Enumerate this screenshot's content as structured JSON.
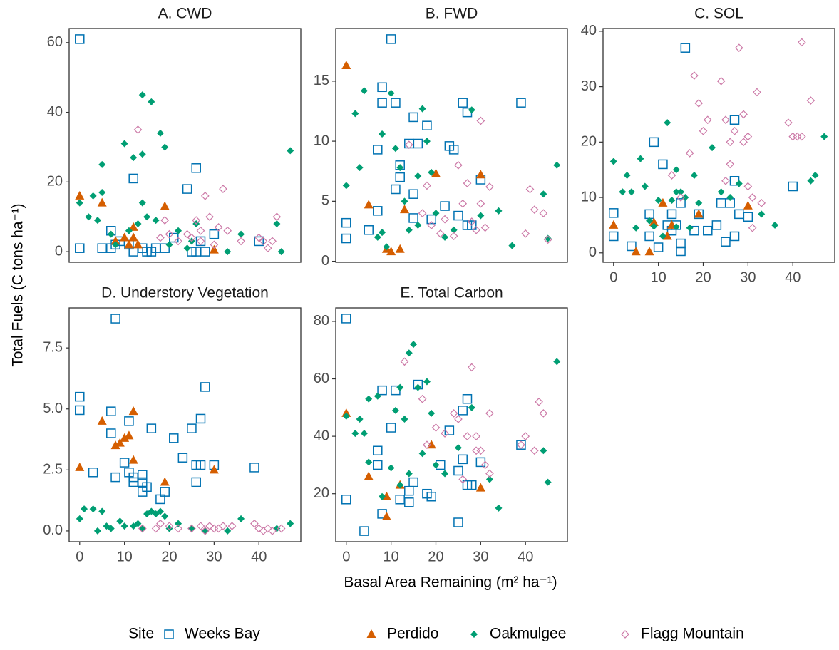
{
  "chart_data": [
    {
      "type": "scatter",
      "title": "A. CWD",
      "xlim": [
        -2.35,
        49.35
      ],
      "ylim": [
        -3.05,
        64.05
      ],
      "yticks": [
        0,
        20,
        40,
        60
      ],
      "series": [
        {
          "name": "Weeks Bay",
          "color": "#0072B2",
          "marker": "square-open",
          "x": [
            0,
            0,
            5,
            7,
            7,
            8,
            9,
            11,
            12,
            12,
            14,
            15,
            16,
            17,
            19,
            21,
            24,
            25,
            26,
            26,
            27,
            28,
            30,
            40
          ],
          "values": [
            61,
            1,
            1,
            6,
            1,
            2,
            3,
            2,
            21,
            0,
            1,
            0,
            0,
            1,
            1,
            4,
            18,
            0,
            24,
            0,
            3,
            0,
            5,
            3
          ]
        },
        {
          "name": "Perdido",
          "color": "#D55E00",
          "marker": "triangle",
          "x": [
            0,
            5,
            8,
            10,
            11,
            12,
            12,
            13,
            19,
            30
          ],
          "values": [
            16,
            14,
            3,
            4,
            2,
            7,
            4,
            2,
            13,
            0.5
          ]
        },
        {
          "name": "Oakmulgee",
          "color": "#009E73",
          "marker": "diamond",
          "x": [
            0,
            2,
            3,
            4,
            5,
            5,
            7,
            8,
            10,
            11,
            12,
            13,
            14,
            14,
            14,
            15,
            16,
            17,
            18,
            19,
            20,
            22,
            24,
            25,
            26,
            33,
            36,
            44,
            45,
            47
          ],
          "values": [
            14,
            10,
            16,
            9,
            17,
            25,
            5,
            2,
            31,
            6,
            27,
            8,
            45,
            28,
            14,
            10,
            43,
            9,
            34,
            30,
            2,
            6,
            1,
            3,
            8,
            0,
            5,
            8,
            0,
            29
          ]
        },
        {
          "name": "Flagg Mountain",
          "color": "#CC79A7",
          "marker": "diamond-open",
          "x": [
            13,
            18,
            19,
            20,
            22,
            24,
            25,
            26,
            27,
            27,
            28,
            29,
            30,
            31,
            32,
            33,
            36,
            40,
            41,
            42,
            43,
            44
          ],
          "values": [
            35,
            4,
            9,
            5,
            3,
            5,
            4,
            9,
            6,
            3,
            16,
            10,
            2,
            7,
            18,
            6,
            3,
            4,
            3,
            1,
            3,
            10
          ]
        }
      ]
    },
    {
      "type": "scatter",
      "title": "B. FWD",
      "xlim": [
        -2.35,
        49.35
      ],
      "ylim": [
        -0.085,
        19.385
      ],
      "yticks": [
        0,
        5,
        10,
        15
      ],
      "series": [
        {
          "name": "Weeks Bay",
          "color": "#0072B2",
          "marker": "square-open",
          "x": [
            0,
            0,
            5,
            7,
            7,
            8,
            8,
            10,
            11,
            11,
            12,
            12,
            14,
            15,
            15,
            15,
            16,
            18,
            19,
            22,
            23,
            24,
            25,
            26,
            27,
            27,
            28,
            30,
            39
          ],
          "values": [
            3.2,
            1.9,
            2.6,
            4.2,
            9.3,
            13.2,
            14.5,
            18.5,
            13.2,
            6,
            7,
            8,
            9.8,
            12,
            5.6,
            3.6,
            9.8,
            11.3,
            3.5,
            4.6,
            9.6,
            9.3,
            3.8,
            13.2,
            12.4,
            3,
            3,
            6.8,
            13.2
          ]
        },
        {
          "name": "Perdido",
          "color": "#D55E00",
          "marker": "triangle",
          "x": [
            0,
            5,
            9,
            10,
            12,
            13,
            20,
            30
          ],
          "values": [
            16.3,
            4.7,
            1,
            0.8,
            1,
            4.3,
            7.3,
            7.2
          ]
        },
        {
          "name": "Oakmulgee",
          "color": "#009E73",
          "marker": "diamond",
          "x": [
            0,
            2,
            3,
            4,
            7,
            8,
            8,
            9,
            10,
            11,
            12,
            13,
            14,
            16,
            16,
            17,
            18,
            19,
            20,
            22,
            24,
            28,
            30,
            34,
            37,
            44,
            45,
            47
          ],
          "values": [
            6.3,
            12.3,
            7.8,
            14.2,
            2,
            2.4,
            10.6,
            1.2,
            14,
            9.4,
            7.8,
            5,
            2.6,
            3,
            7.1,
            12.7,
            10,
            7.4,
            4,
            2,
            2.6,
            12.6,
            3.8,
            4.2,
            1.3,
            5.6,
            1.9,
            8
          ]
        },
        {
          "name": "Flagg Mountain",
          "color": "#CC79A7",
          "marker": "diamond-open",
          "x": [
            14,
            17,
            18,
            19,
            21,
            22,
            24,
            25,
            26,
            27,
            28,
            29,
            30,
            30,
            31,
            32,
            40,
            41,
            42,
            44,
            45
          ],
          "values": [
            9.7,
            4,
            6.3,
            3,
            2.3,
            3.5,
            2.1,
            8,
            4.8,
            6.5,
            3.3,
            2.6,
            4.8,
            11.7,
            2.8,
            6.2,
            2.3,
            6,
            4.3,
            4,
            1.8
          ]
        }
      ]
    },
    {
      "type": "scatter",
      "title": "C. SOL",
      "xlim": [
        -2.35,
        49.35
      ],
      "xticks": [
        0,
        10,
        20,
        30,
        40
      ],
      "ylim": [
        -1.7,
        40.5
      ],
      "yticks": [
        0,
        10,
        20,
        30,
        40
      ],
      "series": [
        {
          "name": "Weeks Bay",
          "color": "#0072B2",
          "marker": "square-open",
          "x": [
            0,
            0,
            4,
            8,
            8,
            9,
            10,
            11,
            12,
            13,
            13,
            14,
            15,
            15,
            15,
            16,
            18,
            19,
            21,
            23,
            24,
            25,
            26,
            27,
            27,
            27,
            28,
            30,
            40
          ],
          "values": [
            7.2,
            3,
            1.2,
            7,
            3,
            20,
            1,
            16,
            5,
            7,
            4,
            5,
            0.3,
            1.7,
            9,
            37,
            4,
            7,
            4,
            5,
            9,
            2,
            9,
            13,
            24,
            3,
            7,
            6.5,
            12
          ]
        },
        {
          "name": "Perdido",
          "color": "#D55E00",
          "marker": "triangle",
          "x": [
            0,
            5,
            8,
            9,
            11,
            12,
            13,
            19,
            30
          ],
          "values": [
            5,
            0.2,
            0.2,
            5.5,
            9,
            3,
            5,
            7,
            8.5
          ]
        },
        {
          "name": "Oakmulgee",
          "color": "#009E73",
          "marker": "diamond",
          "x": [
            0,
            2,
            3,
            4,
            5,
            6,
            7,
            8,
            9,
            10,
            11,
            12,
            13,
            14,
            14,
            14,
            15,
            16,
            17,
            18,
            19,
            22,
            24,
            26,
            28,
            33,
            36,
            44,
            45,
            47
          ],
          "values": [
            16.5,
            11,
            14,
            11,
            4.5,
            17,
            12,
            5.8,
            4.8,
            9.5,
            3,
            23.5,
            9.5,
            4.7,
            11,
            15,
            11,
            10,
            4.5,
            14,
            9,
            19,
            11,
            10,
            12.5,
            7,
            5,
            13,
            14,
            21
          ]
        },
        {
          "name": "Flagg Mountain",
          "color": "#CC79A7",
          "marker": "diamond-open",
          "x": [
            13,
            15,
            17,
            18,
            19,
            20,
            21,
            24,
            25,
            25,
            26,
            26,
            27,
            28,
            29,
            29,
            30,
            30,
            31,
            31,
            32,
            33,
            39,
            40,
            41,
            42,
            42,
            44
          ],
          "values": [
            14,
            10,
            18,
            32,
            27,
            22,
            24,
            31,
            24,
            13,
            20,
            16,
            22,
            37,
            20,
            25,
            21,
            12,
            10,
            4.5,
            29,
            9,
            23.5,
            21,
            21,
            38,
            21,
            27.5
          ]
        }
      ]
    },
    {
      "type": "scatter",
      "title": "D. Understory Vegetation",
      "xlim": [
        -2.35,
        49.35
      ],
      "xticks": [
        0,
        10,
        20,
        30,
        40
      ],
      "ylim": [
        -0.44,
        9.14
      ],
      "yticks": [
        {
          "value": 0,
          "label": "0.0"
        },
        2.5,
        {
          "value": 5,
          "label": "5.0"
        },
        7.5
      ],
      "series": [
        {
          "name": "Weeks Bay",
          "color": "#0072B2",
          "marker": "square-open",
          "x": [
            0,
            0,
            3,
            7,
            7,
            8,
            8,
            10,
            11,
            11,
            12,
            12,
            14,
            14,
            14,
            15,
            16,
            18,
            19,
            21,
            23,
            25,
            26,
            26,
            27,
            27,
            28,
            30,
            39
          ],
          "values": [
            5.5,
            4.95,
            2.4,
            4.9,
            4,
            8.7,
            2.2,
            2.8,
            4.5,
            2.4,
            2.2,
            2,
            2.3,
            2,
            1.6,
            1.8,
            4.2,
            1.3,
            1.6,
            3.8,
            3,
            4.2,
            2.7,
            2,
            2.7,
            4.6,
            5.9,
            2.7,
            2.6
          ]
        },
        {
          "name": "Perdido",
          "color": "#D55E00",
          "marker": "triangle",
          "x": [
            0,
            5,
            8,
            9,
            10,
            11,
            12,
            12,
            19,
            30
          ],
          "values": [
            2.6,
            4.5,
            3.5,
            3.6,
            3.8,
            3.9,
            2.9,
            4.9,
            2,
            2.5
          ]
        },
        {
          "name": "Oakmulgee",
          "color": "#009E73",
          "marker": "diamond",
          "x": [
            0,
            1,
            3,
            4,
            5,
            6,
            7,
            9,
            10,
            12,
            13,
            14,
            15,
            16,
            17,
            18,
            19,
            20,
            22,
            25,
            28,
            33,
            36,
            44,
            47
          ],
          "values": [
            0.5,
            0.9,
            0.9,
            0,
            0.8,
            0.2,
            0.1,
            0.4,
            0.2,
            0.2,
            0.3,
            0.1,
            0.7,
            0.8,
            0.7,
            0.8,
            0.6,
            0.1,
            0.3,
            0.1,
            0,
            0,
            0.5,
            0.1,
            0.3
          ]
        },
        {
          "name": "Flagg Mountain",
          "color": "#CC79A7",
          "marker": "diamond-open",
          "x": [
            14,
            17,
            18,
            20,
            22,
            25,
            27,
            28,
            29,
            30,
            31,
            32,
            34,
            39,
            40,
            41,
            42,
            43,
            45
          ],
          "values": [
            0.1,
            0.1,
            0.3,
            0.2,
            0.1,
            0.1,
            0.2,
            0,
            0.2,
            0.1,
            0.1,
            0.2,
            0.2,
            0.3,
            0.1,
            0,
            0.1,
            0,
            0.1
          ]
        }
      ]
    },
    {
      "type": "scatter",
      "title": "E. Total Carbon",
      "xlim": [
        -2.35,
        49.35
      ],
      "xticks": [
        0,
        10,
        20,
        30,
        40
      ],
      "ylim": [
        3.3,
        84.7
      ],
      "yticks": [
        20,
        40,
        60,
        80
      ],
      "series": [
        {
          "name": "Weeks Bay",
          "color": "#0072B2",
          "marker": "square-open",
          "x": [
            0,
            0,
            4,
            7,
            7,
            8,
            8,
            10,
            11,
            12,
            14,
            14,
            15,
            16,
            18,
            19,
            21,
            23,
            25,
            25,
            26,
            26,
            27,
            27,
            28,
            30,
            39
          ],
          "values": [
            81,
            18,
            7,
            35,
            30,
            56,
            13,
            43,
            56,
            18,
            17,
            21,
            24,
            58,
            20,
            19,
            30,
            42,
            28,
            10,
            49,
            32,
            23,
            53,
            23,
            31,
            37
          ]
        },
        {
          "name": "Perdido",
          "color": "#D55E00",
          "marker": "triangle",
          "x": [
            0,
            5,
            9,
            9,
            12,
            19,
            30
          ],
          "values": [
            48,
            26,
            19,
            12,
            23,
            37,
            22
          ]
        },
        {
          "name": "Oakmulgee",
          "color": "#009E73",
          "marker": "diamond",
          "x": [
            0,
            2,
            3,
            4,
            5,
            5,
            7,
            8,
            10,
            11,
            12,
            12,
            13,
            14,
            14,
            15,
            16,
            17,
            18,
            19,
            20,
            22,
            25,
            28,
            32,
            34,
            44,
            45,
            47
          ],
          "values": [
            47,
            41,
            46,
            41,
            31,
            53,
            54,
            19,
            29,
            49,
            23,
            57,
            46,
            69,
            27,
            72,
            57,
            34,
            59,
            48,
            30,
            27,
            36,
            50,
            25,
            15,
            35,
            24,
            66
          ]
        },
        {
          "name": "Flagg Mountain",
          "color": "#CC79A7",
          "marker": "diamond-open",
          "x": [
            13,
            17,
            18,
            20,
            22,
            24,
            25,
            26,
            27,
            28,
            29,
            29,
            30,
            31,
            32,
            32,
            39,
            40,
            42,
            43,
            44
          ],
          "values": [
            66,
            53,
            37,
            43,
            41,
            48,
            46,
            25,
            40,
            64,
            35,
            40,
            35,
            30,
            27,
            48,
            37,
            40,
            35,
            52,
            48
          ]
        }
      ]
    }
  ],
  "xlabel": "Basal Area Remaining (m² ha⁻¹)",
  "ylabel": "Total Fuels (C tons ha⁻¹)",
  "legend_title": "Site",
  "legend": "bottom"
}
